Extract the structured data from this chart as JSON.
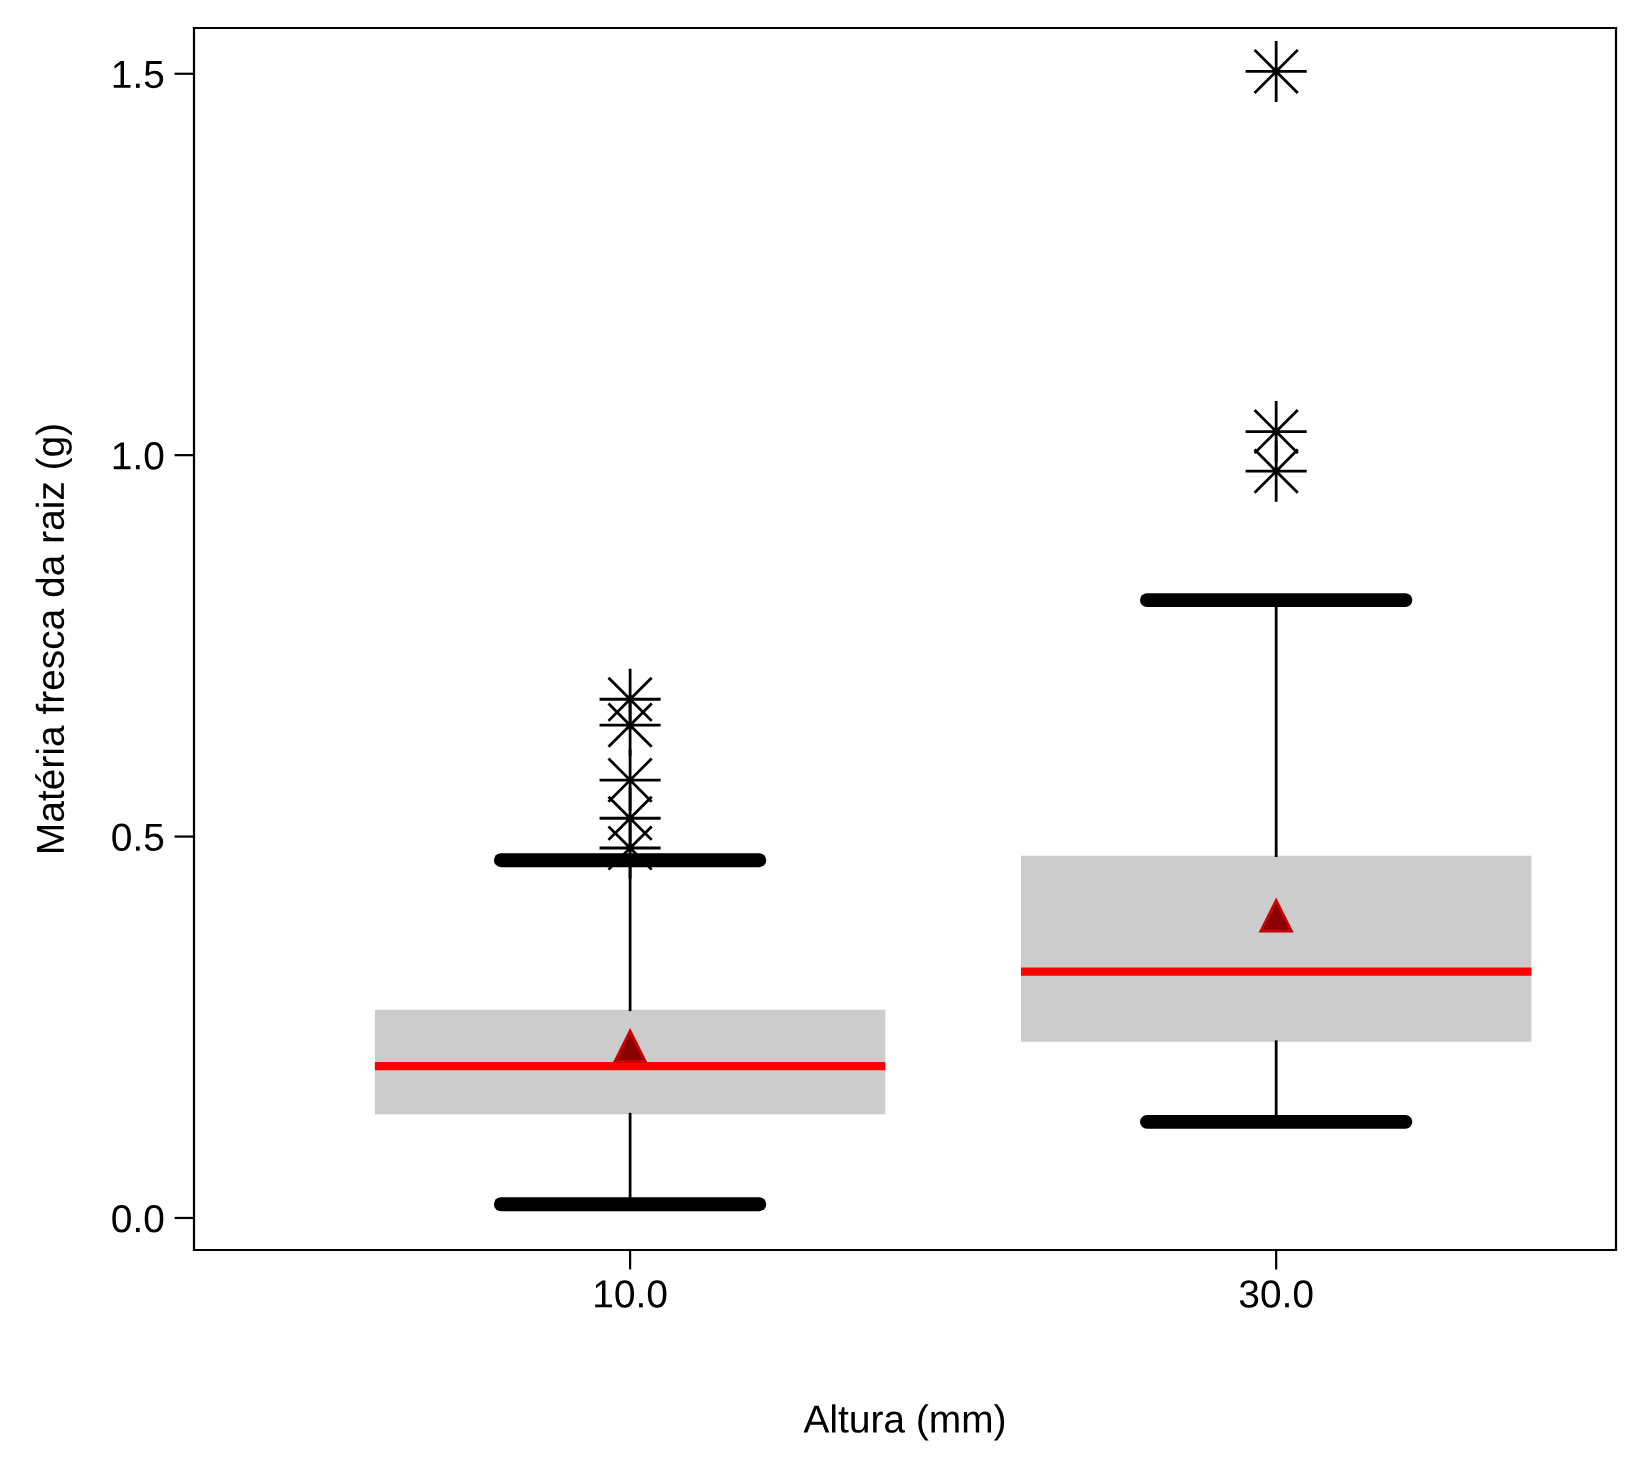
{
  "chart_data": {
    "type": "box",
    "xlabel": "Altura (mm)",
    "ylabel": "Matéria fresca da raiz (g)",
    "categories": [
      "10.0",
      "30.0"
    ],
    "colors": [
      "#cccccc",
      "#cccccc"
    ],
    "boxes": [
      {
        "low": 0.018,
        "q1": 0.136,
        "median": 0.199,
        "q3": 0.273,
        "high": 0.469,
        "mean": 0.225,
        "outliers": [
          0.485,
          0.524,
          0.574,
          0.646,
          0.68
        ]
      },
      {
        "low": 0.126,
        "q1": 0.231,
        "median": 0.323,
        "q3": 0.475,
        "high": 0.81,
        "mean": 0.396,
        "outliers": [
          0.979,
          1.031,
          1.503
        ]
      }
    ],
    "ylim": [
      -0.042,
      1.56
    ],
    "yticks": [
      {
        "value": 0,
        "label": "0.0"
      },
      {
        "value": 0.5,
        "label": "0.5"
      },
      {
        "value": 1.0,
        "label": "1.0"
      },
      {
        "value": 1.5,
        "label": "1.5"
      }
    ],
    "grid": false
  }
}
